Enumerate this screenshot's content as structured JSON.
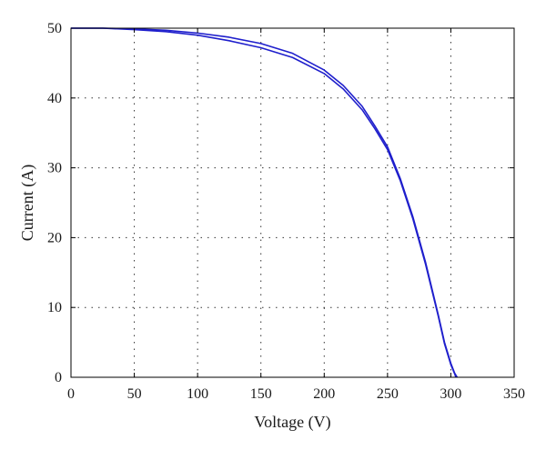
{
  "chart_data": {
    "type": "line",
    "title": "",
    "xlabel": "Voltage (V)",
    "ylabel": "Current (A)",
    "xlim": [
      0,
      350
    ],
    "ylim": [
      0,
      50
    ],
    "xticks": [
      0,
      50,
      100,
      150,
      200,
      250,
      300,
      350
    ],
    "yticks": [
      0,
      10,
      20,
      30,
      40,
      50
    ],
    "grid": true,
    "legend": "none",
    "colors": {
      "series": "#1f1fcc",
      "grid": "#333333",
      "frame": "#000000"
    },
    "series": [
      {
        "x": [
          0,
          25,
          50,
          75,
          100,
          125,
          150,
          175,
          200,
          215,
          230,
          240,
          250,
          260,
          270,
          280,
          290,
          295,
          300,
          303,
          305
        ],
        "values": [
          50,
          50,
          49.9,
          49.7,
          49.3,
          48.7,
          47.8,
          46.4,
          44.0,
          41.8,
          38.8,
          36.0,
          33.0,
          28.5,
          23.0,
          16.5,
          9.0,
          5.0,
          2.0,
          0.6,
          0
        ]
      },
      {
        "x": [
          0,
          25,
          50,
          75,
          100,
          125,
          150,
          175,
          200,
          215,
          230,
          240,
          250,
          260,
          270,
          280,
          290,
          295,
          300,
          303,
          304
        ],
        "values": [
          50,
          50,
          49.8,
          49.5,
          49.0,
          48.2,
          47.2,
          45.8,
          43.5,
          41.3,
          38.3,
          35.6,
          32.6,
          28.2,
          22.7,
          16.2,
          8.8,
          4.8,
          1.8,
          0.5,
          0
        ]
      }
    ]
  }
}
